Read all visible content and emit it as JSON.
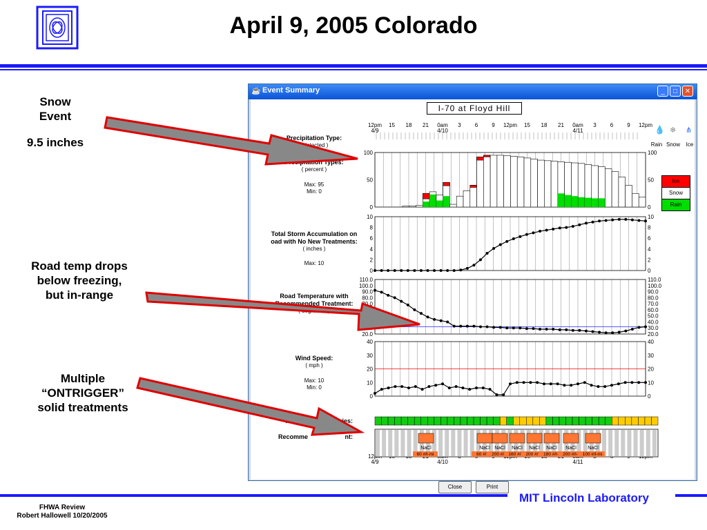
{
  "slide": {
    "title": "April 9, 2005 Colorado",
    "notes": {
      "snow_event": "Snow\nEvent",
      "snow_amount": "9.5 inches",
      "road_temp": "Road temp drops\nbelow freezing,\nbut in-range",
      "treatments": "Multiple\n“ONTRIGGER”\nsolid treatments"
    },
    "footer": {
      "org": "MIT Lincoln Laboratory",
      "review": "FHWA Review",
      "author": "Robert Hallowell 10/20/2005"
    }
  },
  "window": {
    "title": "Event Summary",
    "location": "I-70 at Floyd Hill",
    "buttons": {
      "close": "Close",
      "print": "Print"
    },
    "time_axis": {
      "labels": [
        "12pm",
        "15",
        "18",
        "21",
        "0am",
        "3",
        "6",
        "9",
        "12pm",
        "15",
        "18",
        "21",
        "0am",
        "3",
        "6",
        "9",
        "12pm"
      ],
      "dates": [
        "4/9",
        "4/10",
        "4/11"
      ]
    },
    "precip_type": {
      "label": "Precipitation Type:",
      "sublabel": "( detected )",
      "icons": {
        "rain": "Rain",
        "snow": "Snow",
        "ice": "Ice"
      },
      "icon_names": [
        "raindrop-icon",
        "snowflake-icon",
        "icicle-icon"
      ]
    },
    "precip_types": {
      "label": "Precipitation Types:",
      "unit": "( percent )",
      "max": "Max: 95",
      "min": "Min: 0",
      "y_ticks": [
        "100",
        "50",
        "0"
      ],
      "legend": [
        "Ice",
        "Snow",
        "Rain"
      ],
      "colors": {
        "ice": "#ff0000",
        "snow": "#ffffff",
        "rain": "#00dd00"
      },
      "total": [
        2,
        2,
        3,
        25,
        28,
        22,
        45,
        5,
        20,
        30,
        40,
        92,
        95,
        95,
        95,
        94,
        93,
        92,
        90,
        88,
        86,
        85,
        84,
        83,
        82,
        81,
        80,
        78,
        76,
        74,
        70,
        65,
        55,
        40,
        25,
        18
      ],
      "ice": [
        0,
        0,
        0,
        10,
        0,
        0,
        6,
        0,
        0,
        0,
        4,
        6,
        3,
        0,
        0,
        0,
        0,
        0,
        0,
        0,
        0,
        0,
        0,
        0,
        0,
        0,
        0,
        0,
        0,
        0,
        0,
        0,
        0,
        0,
        0,
        0
      ],
      "rain": [
        0,
        0,
        0,
        10,
        23,
        12,
        20,
        0,
        0,
        0,
        0,
        0,
        0,
        0,
        0,
        0,
        0,
        0,
        0,
        0,
        0,
        0,
        0,
        25,
        22,
        20,
        18,
        17,
        16,
        16,
        0,
        0,
        0,
        0,
        0,
        0
      ]
    },
    "accumulation": {
      "label1": "Total Storm Accumulation on",
      "label2": "oad with No New Treatments:",
      "unit": "( inches )",
      "max": "Max: 10",
      "y_ticks": [
        "10",
        "8",
        "6",
        "4",
        "2",
        "0"
      ],
      "values": [
        0,
        0,
        0,
        0,
        0,
        0,
        0,
        0,
        0,
        0,
        0,
        0,
        0,
        0.1,
        0.4,
        1.0,
        2.0,
        3.2,
        4.1,
        4.8,
        5.4,
        5.9,
        6.3,
        6.7,
        7.0,
        7.3,
        7.5,
        7.7,
        7.9,
        8.0,
        8.2,
        8.5,
        8.8,
        9.0,
        9.2,
        9.3,
        9.4,
        9.5,
        9.5,
        9.4,
        9.3,
        9.2
      ]
    },
    "road_temp": {
      "label1": "Road Temperature with",
      "label2": "Recommended Treatment:",
      "unit": "( degrees F )",
      "y_ticks": [
        "110.0",
        "100.0",
        "90.0",
        "80.0",
        "70.0",
        "60.0",
        "50.0",
        "40.0",
        "30.0",
        "20.0"
      ],
      "threshold": 32,
      "values": [
        92,
        89,
        84,
        80,
        74,
        68,
        60,
        54,
        48,
        44,
        42,
        40,
        33,
        33,
        33,
        33,
        32,
        32,
        31,
        31,
        30,
        30,
        30,
        29,
        29,
        28,
        28,
        28,
        27,
        27,
        26,
        26,
        25,
        24,
        23,
        22,
        22,
        23,
        25,
        28,
        31,
        32
      ]
    },
    "wind": {
      "label": "Wind Speed:",
      "unit": "( mph )",
      "max": "Max: 10",
      "min": "Min: 0",
      "y_ticks": [
        "40",
        "30",
        "20",
        "10",
        "0"
      ],
      "threshold": 20,
      "values": [
        2,
        5,
        6,
        7,
        7,
        6,
        7,
        5,
        7,
        8,
        9,
        6,
        7,
        6,
        5,
        6,
        6,
        5,
        1,
        1,
        9,
        10,
        10,
        10,
        10,
        9,
        9,
        9,
        8,
        8,
        9,
        10,
        8,
        7,
        7,
        8,
        9,
        10,
        10,
        10,
        10
      ]
    },
    "advisories": {
      "label": "wing Snow Advisories:",
      "cells": [
        "g",
        "g",
        "g",
        "g",
        "g",
        "g",
        "g",
        "g",
        "g",
        "g",
        "g",
        "g",
        "g",
        "g",
        "g",
        "g",
        "g",
        "g",
        "g",
        "y",
        "g",
        "y",
        "y",
        "y",
        "y",
        "y",
        "g",
        "g",
        "g",
        "g",
        "g",
        "g",
        "g",
        "g",
        "g",
        "g",
        "y",
        "y",
        "y",
        "y",
        "y",
        "y",
        "y"
      ]
    },
    "treatments": {
      "label": "Recomme",
      "label_tail": "nt:",
      "chemical": "NaCl",
      "rates": [
        "60 #/l-mi",
        "60 #/l-n",
        "200 #/l-",
        "160 #/l-i",
        "200 #/l-i",
        "180 #/l-",
        "200 #/l-",
        "100 #/l-mi"
      ]
    }
  }
}
